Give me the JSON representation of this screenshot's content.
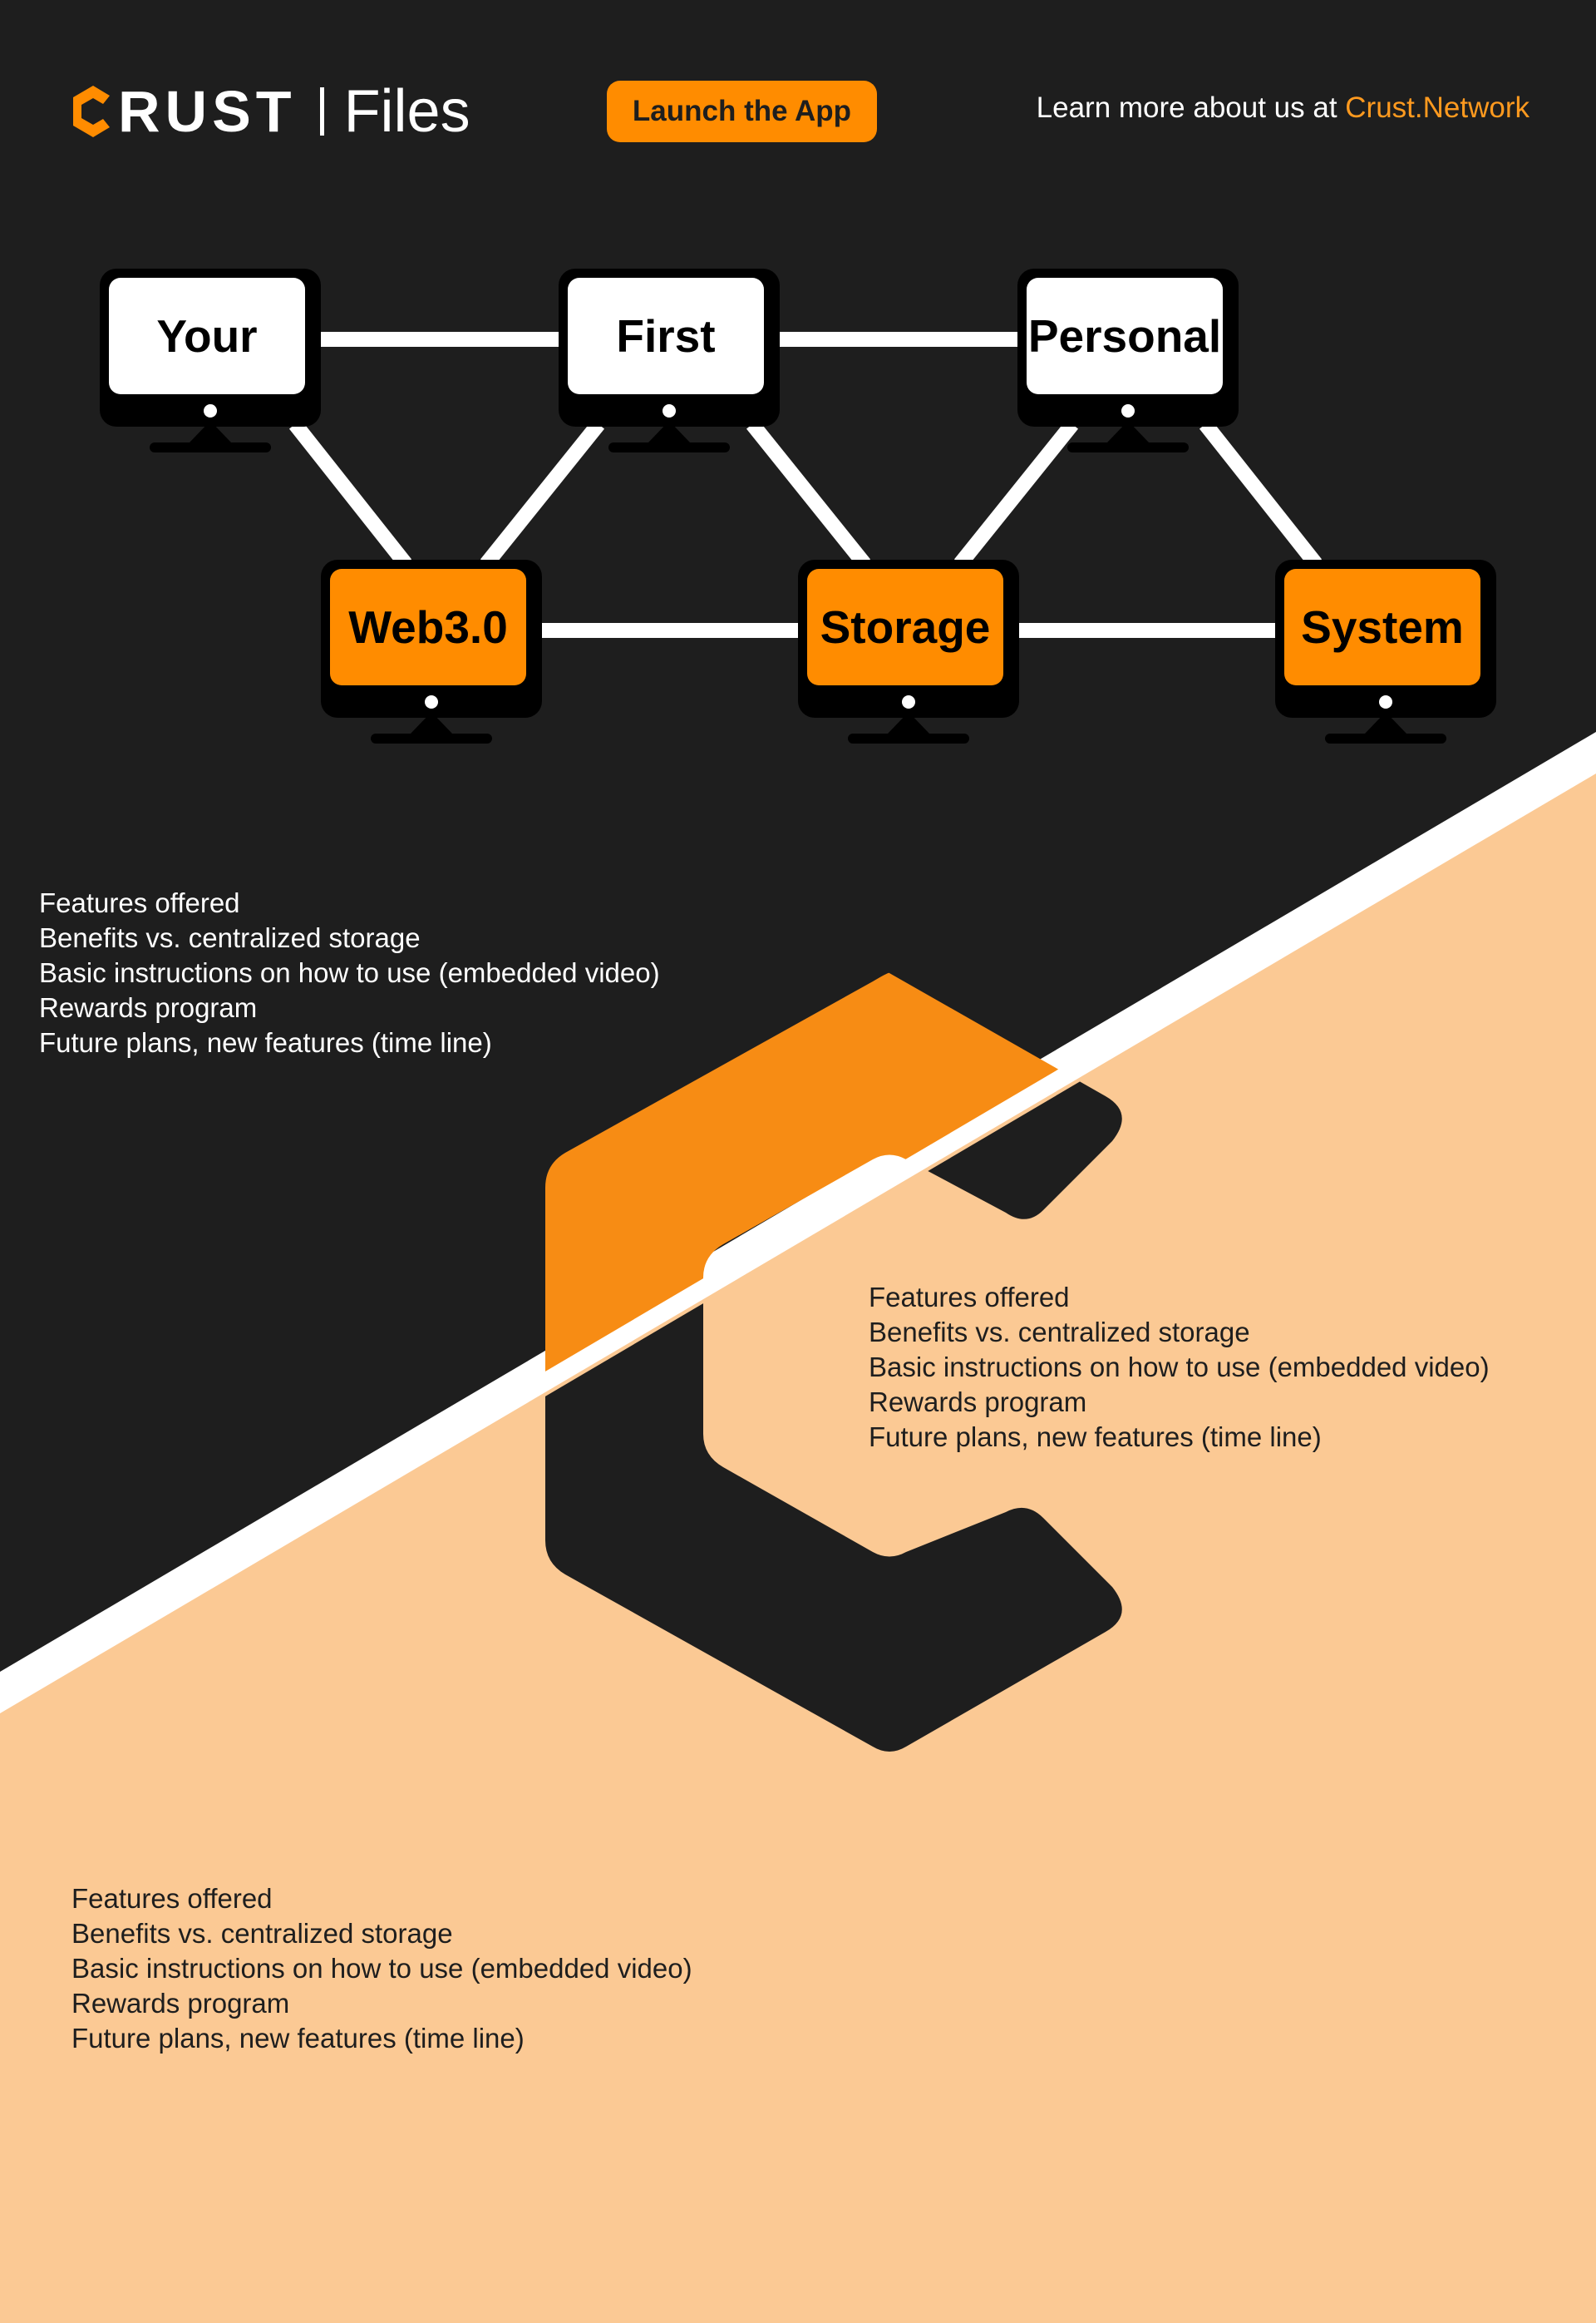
{
  "header": {
    "logo_word": "RUST",
    "logo_product": "Files",
    "launch_button": "Launch the App",
    "learn_more_prefix": "Learn more about us at ",
    "learn_more_link": "Crust.Network"
  },
  "network": {
    "top_row": [
      "Your",
      "First",
      "Personal"
    ],
    "bottom_row": [
      "Web3.0",
      "Storage",
      "System"
    ]
  },
  "feature_blocks": [
    {
      "items": [
        "Features offered",
        "Benefits vs. centralized storage",
        "Basic instructions on how to use (embedded video)",
        "Rewards program",
        "Future plans, new features (time line)"
      ]
    },
    {
      "items": [
        "Features offered",
        "Benefits vs. centralized storage",
        "Basic instructions on how to use (embedded video)",
        "Rewards program",
        "Future plans, new features (time line)"
      ]
    },
    {
      "items": [
        "Features offered",
        "Benefits vs. centralized storage",
        "Basic instructions on how to use (embedded video)",
        "Rewards program",
        "Future plans, new features (time line)"
      ]
    }
  ],
  "colors": {
    "dark_bg": "#1e1e1e",
    "peach_bg": "#fbc994",
    "accent_orange": "#ff8c00",
    "white": "#ffffff"
  }
}
